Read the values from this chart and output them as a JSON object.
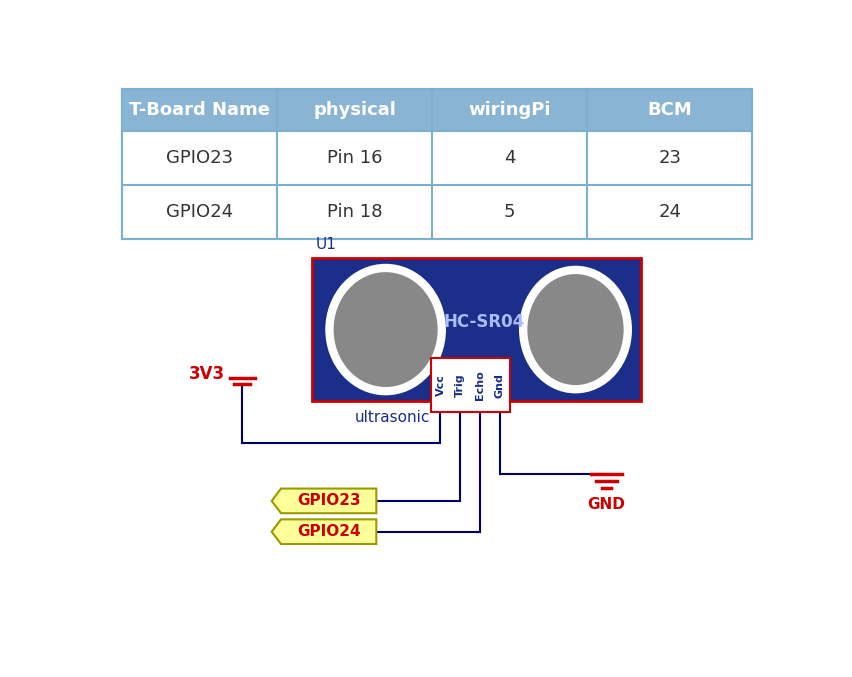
{
  "table_headers": [
    "T-Board Name",
    "physical",
    "wiringPi",
    "BCM"
  ],
  "table_rows": [
    [
      "GPIO23",
      "Pin 16",
      "4",
      "23"
    ],
    [
      "GPIO24",
      "Pin 18",
      "5",
      "24"
    ]
  ],
  "header_bg": "#8ab4d4",
  "header_text_color": "#ffffff",
  "row_bg": "#ffffff",
  "row_text_color": "#333333",
  "border_color": "#7ab0d0",
  "sensor_bg": "#1a2e8a",
  "sensor_border": "#cc0000",
  "sensor_label": "HC-SR04",
  "sensor_sublabel": "ultrasonic",
  "sensor_label_color": "#aabbff",
  "sensor_sublabel_color": "#1a2e8a",
  "u1_label": "U1",
  "u1_color": "#1a2e8a",
  "pin_labels": [
    "Vcc",
    "Trig",
    "Echo",
    "Gnd"
  ],
  "pin_box_border": "#cc0000",
  "wire_color": "#000066",
  "vcc_label": "3V3",
  "vcc_color": "#cc0000",
  "gnd_label": "GND",
  "gnd_color": "#cc0000",
  "gpio23_label": "GPIO23",
  "gpio24_label": "GPIO24",
  "gpio_bg": "#ffff99",
  "gpio_border": "#999900",
  "gpio_text_color": "#cc0000"
}
